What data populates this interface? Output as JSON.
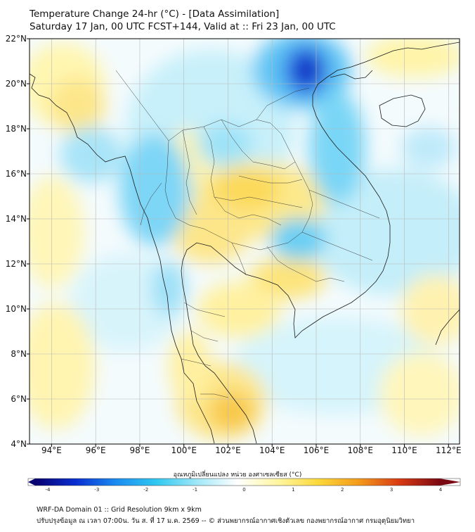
{
  "header": {
    "title": "Temperature Change 24-hr (°C) - [Data Assimilation]",
    "subtitle": "Saturday 17 Jan, 00 UTC FCST+144, Valid at :: Fri 23 Jan, 00 UTC"
  },
  "map": {
    "lat_labels": [
      "22°N",
      "20°N",
      "18°N",
      "16°N",
      "14°N",
      "12°N",
      "10°N",
      "8°N",
      "6°N",
      "4°N"
    ],
    "lon_labels": [
      "94°E",
      "96°E",
      "98°E",
      "100°E",
      "102°E",
      "104°E",
      "106°E",
      "108°E",
      "110°E",
      "112°E"
    ],
    "lat_range": [
      4,
      22
    ],
    "lon_range": [
      93,
      112.5
    ]
  },
  "colorbar": {
    "title": "อุณหภูมิเปลี่ยนแปลง หน่วย องศาเซลเซียส (°C)",
    "range": [
      -4,
      4
    ],
    "ticks": [
      "-4",
      "-3",
      "-2",
      "-1",
      "0",
      "1",
      "2",
      "3",
      "4"
    ],
    "colors": [
      "#08006e",
      "#0a2fd0",
      "#1a8cf0",
      "#2fc8f0",
      "#9fe8f8",
      "#ffffff",
      "#fff6a0",
      "#fbd83a",
      "#f39a1a",
      "#d83a12",
      "#7a0812"
    ]
  },
  "footer": {
    "line1": "WRF-DA Domain 01 :: Grid Resolution 9km x 9km",
    "line2": "ปรับปรุงข้อมูล ณ เวลา 07:00น. วัน ส. ที่ 17 ม.ค. 2569 -- © ส่วนพยากรณ์อากาศเชิงตัวเลข กองพยากรณ์อากาศ กรมอุตุนิยมวิทยา"
  }
}
